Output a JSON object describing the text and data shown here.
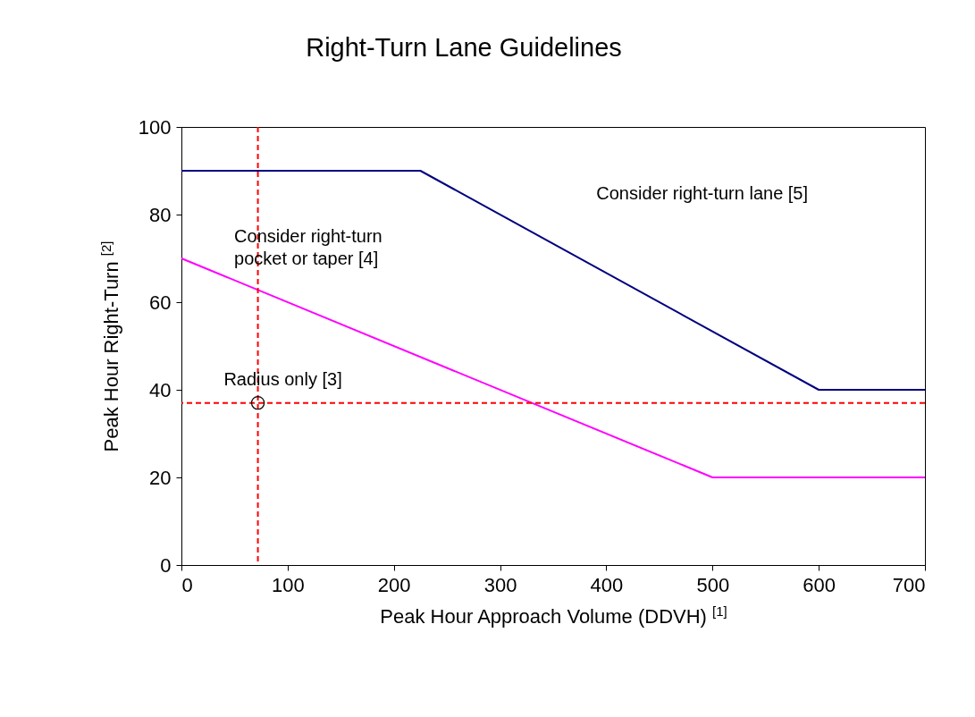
{
  "chart_data": {
    "type": "line",
    "title": "Right-Turn Lane Guidelines",
    "xlabel": "Peak Hour Approach Volume (DDVH) $^{[1]}$",
    "ylabel": "Peak Hour Right-Turn $^{[2]}$",
    "xlim": [
      0,
      700
    ],
    "xticks": [
      0,
      100,
      200,
      300,
      400,
      500,
      600,
      700
    ],
    "ylim": [
      0,
      100
    ],
    "yticks": [
      0,
      20,
      40,
      60,
      80,
      100
    ],
    "grid": false,
    "marker": "none",
    "line_style": "solid",
    "series": [
      {
        "color": "#000080",
        "x": [
          0,
          225,
          600,
          700
        ],
        "values": [
          90,
          90,
          40,
          40
        ]
      },
      {
        "color": "#ff00ff",
        "x": [
          0,
          500,
          700
        ],
        "values": [
          70,
          20,
          20
        ]
      },
      {
        "type": "scatter",
        "marker": "circle",
        "color": "#000000",
        "x": [
          72
        ],
        "values": [
          37
        ]
      }
    ],
    "ref_lines": [
      {
        "axis": "x",
        "value": 72,
        "color": "#ff0000",
        "line_style": "dashed"
      },
      {
        "axis": "y",
        "value": 37,
        "color": "#ff0000",
        "line_style": "dashed"
      }
    ],
    "annotations": [
      "Consider right-turn lane [5]",
      "Consider right-turn\npocket or taper [4]",
      "Radius only [3]"
    ]
  }
}
